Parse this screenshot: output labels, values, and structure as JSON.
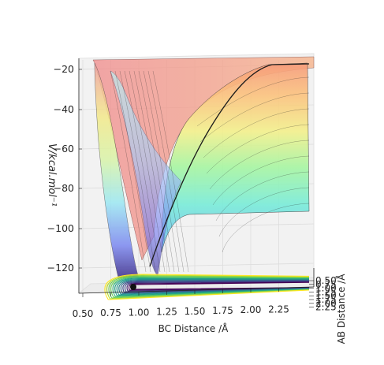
{
  "chart_data": {
    "type": "surface3d",
    "title": "",
    "xlabel": "BC Distance /Å",
    "ylabel": "AB Distance /Å",
    "zlabel": "V/kcal.mol⁻¹",
    "x_ticks": [
      "0.50",
      "0.75",
      "1.00",
      "1.25",
      "1.50",
      "1.75",
      "2.00",
      "2.25"
    ],
    "y_ticks": [
      "0.50",
      "0.75",
      "1.00",
      "1.25",
      "1.50",
      "1.75",
      "2.00",
      "2.25"
    ],
    "z_ticks": [
      "−20",
      "−40",
      "−60",
      "−80",
      "−100",
      "−120"
    ],
    "xlim": [
      0.5,
      2.5
    ],
    "ylim": [
      0.5,
      2.5
    ],
    "zlim": [
      -135,
      -17
    ],
    "colormap_surface": "jet",
    "colormap_contour": "viridis",
    "minimum_marker": {
      "x": 0.92,
      "y": 0.92,
      "z": -135
    },
    "surface_samples": [
      {
        "x": 0.6,
        "v_asymptote": -20
      },
      {
        "x": 0.93,
        "v_asymptote": -128
      },
      {
        "x": 1.2,
        "v_asymptote": -105
      },
      {
        "x": 1.5,
        "v_asymptote": -70
      },
      {
        "x": 2.0,
        "v_asymptote": -28
      },
      {
        "x": 2.5,
        "v_asymptote": -20
      }
    ],
    "plateau_level": -95,
    "grid": true
  }
}
